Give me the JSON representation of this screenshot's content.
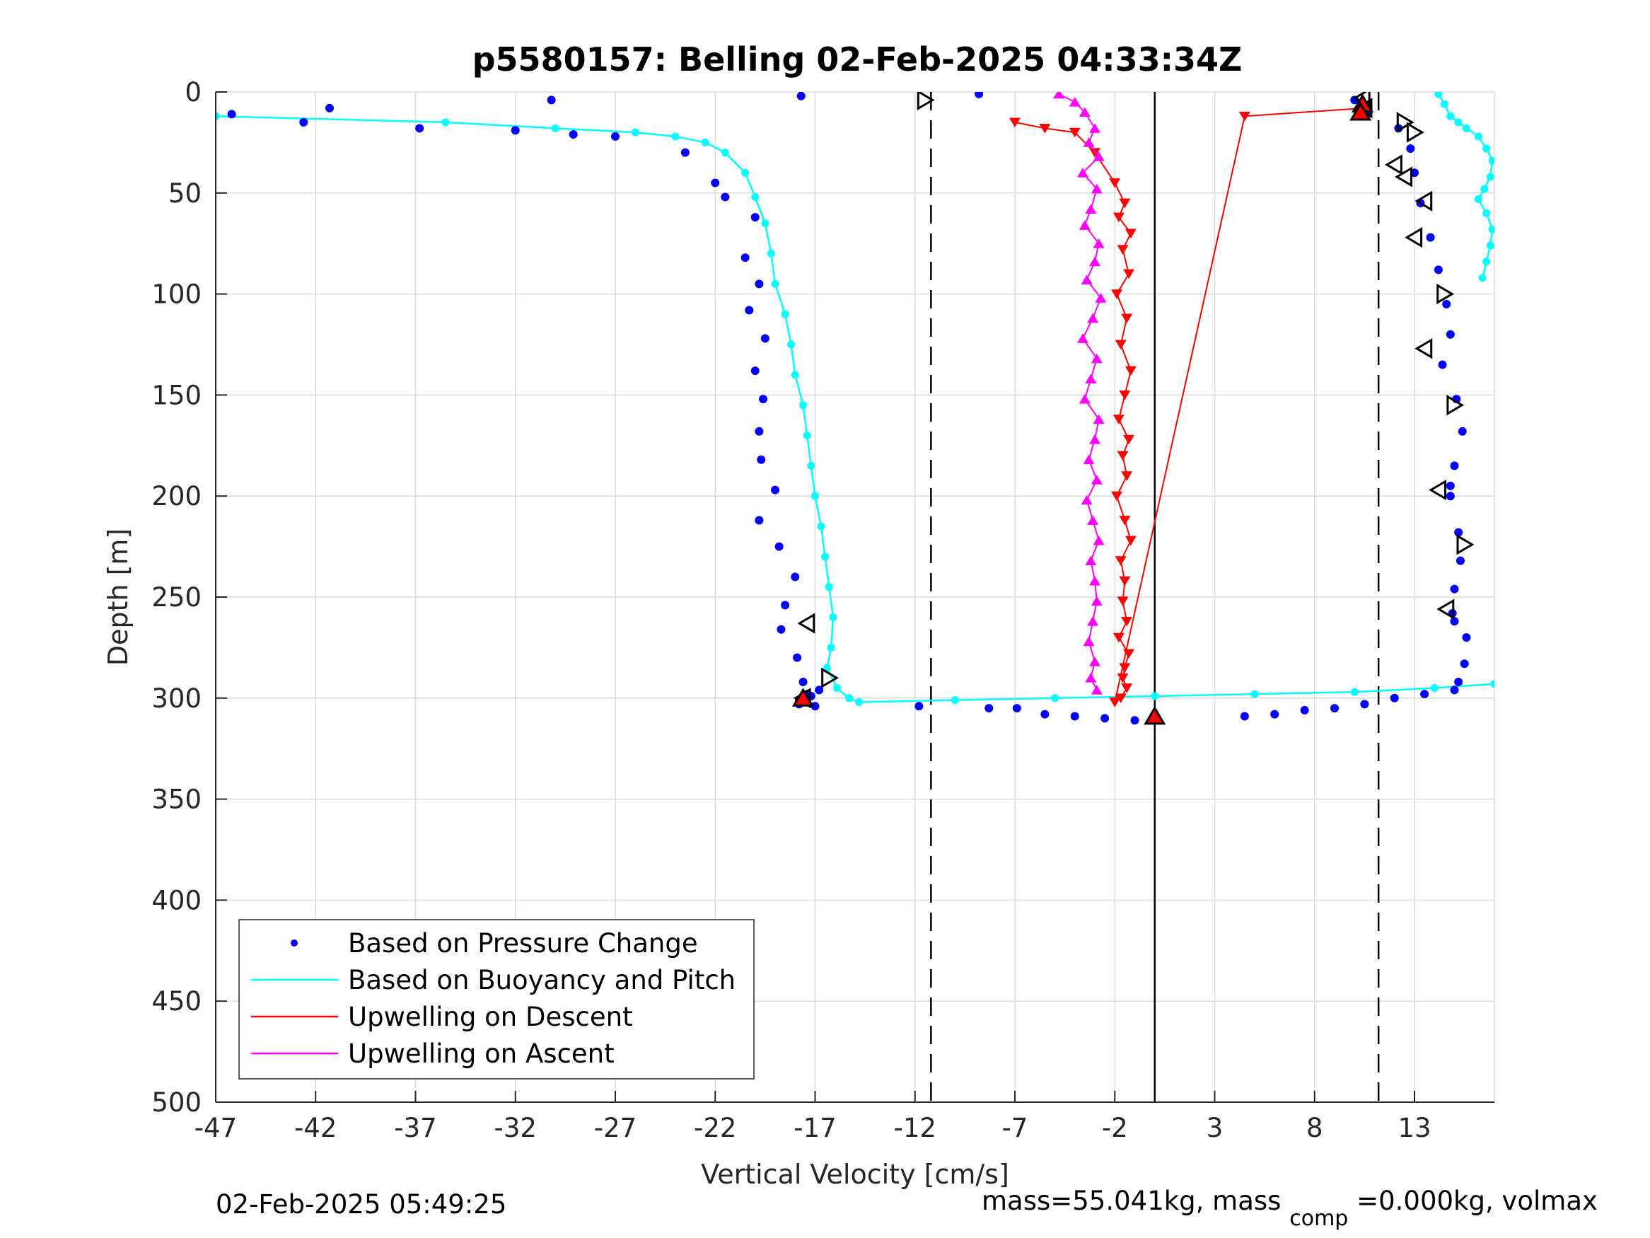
{
  "chart_data": {
    "type": "scatter",
    "title": "p5580157: Belling 02-Feb-2025 04:33:34Z",
    "xlabel": "Vertical Velocity [cm/s]",
    "ylabel": "Depth [m]",
    "xlim": [
      -47,
      17
    ],
    "ylim": [
      0,
      500
    ],
    "y_reversed": true,
    "grid": true,
    "xticks": [
      -47,
      -42,
      -37,
      -32,
      -27,
      -22,
      -17,
      -12,
      -7,
      -2,
      3,
      8,
      13
    ],
    "yticks": [
      0,
      50,
      100,
      150,
      200,
      250,
      300,
      350,
      400,
      450,
      500
    ],
    "legend_position": "bottom-left",
    "footer_left": "02-Feb-2025 05:49:25",
    "footer_right_parts": [
      "mass=55.041kg, mass",
      "comp",
      "=0.000kg, volmax"
    ],
    "reference_lines": [
      {
        "x": -11.2,
        "style": "dashed"
      },
      {
        "x": 11.2,
        "style": "dashed"
      },
      {
        "x": 0,
        "style": "solid"
      }
    ],
    "series": [
      {
        "name": "Based on Pressure Change",
        "color": "#0000ff",
        "marker": "dot",
        "x": [
          -46.2,
          -42.6,
          -41.3,
          -36.8,
          -32.0,
          -30.2,
          -29.1,
          -27.0,
          -17.7,
          -8.8,
          -23.5,
          -22.0,
          -21.5,
          -20.0,
          -20.5,
          -19.8,
          -20.3,
          -19.5,
          -20.0,
          -19.6,
          -19.8,
          -19.7,
          -19.0,
          -19.8,
          -18.8,
          -18.0,
          -18.5,
          -18.7,
          -17.9,
          -17.6,
          -17.5,
          -17.0,
          -17.8,
          -17.2,
          -16.8,
          -17.4,
          -17.8,
          -11.8,
          -8.3,
          -6.9,
          -5.5,
          -4.0,
          -2.5,
          -1.0,
          4.5,
          6.0,
          7.5,
          9.0,
          10.5,
          12.0,
          13.5,
          15.0,
          10.0,
          10.6,
          12.2,
          12.8,
          13.0,
          13.3,
          13.8,
          14.2,
          14.6,
          14.8,
          14.4,
          15.1,
          15.4,
          15.0,
          14.8,
          15.2,
          15.3,
          15.0,
          14.9,
          15.6,
          15.5,
          15.2,
          15.0,
          14.8
        ],
        "y": [
          11,
          15,
          8,
          18,
          19,
          4,
          21,
          22,
          2,
          1,
          30,
          45,
          52,
          62,
          82,
          95,
          108,
          122,
          138,
          152,
          168,
          182,
          197,
          212,
          225,
          240,
          254,
          266,
          280,
          292,
          302,
          304,
          301,
          299,
          296,
          298,
          303,
          304,
          305,
          305,
          308,
          309,
          310,
          311,
          309,
          308,
          306,
          305,
          303,
          300,
          298,
          296,
          4,
          10,
          18,
          28,
          40,
          55,
          72,
          88,
          105,
          120,
          135,
          152,
          168,
          185,
          200,
          218,
          232,
          246,
          258,
          270,
          283,
          292,
          262,
          195
        ]
      },
      {
        "name": "Based on Buoyancy and Pitch",
        "color": "#00ffff",
        "marker": "line",
        "x": [
          -47.0,
          -35.5,
          -30.0,
          -26.0,
          -24.0,
          -22.5,
          -21.5,
          -20.5,
          -20.0,
          -19.5,
          -19.2,
          -19.0,
          -18.5,
          -18.2,
          -18.0,
          -17.6,
          -17.4,
          -17.2,
          -17.0,
          -16.7,
          -16.5,
          -16.3,
          -16.1,
          -16.2,
          -16.4,
          -15.9,
          -15.3,
          -14.8,
          -10.0,
          -5.0,
          0.0,
          5.0,
          10.0,
          14.0,
          17.0
        ],
        "y": [
          12,
          15,
          18,
          20,
          22,
          25,
          30,
          40,
          52,
          65,
          80,
          95,
          110,
          125,
          140,
          155,
          170,
          185,
          200,
          215,
          230,
          245,
          260,
          275,
          285,
          295,
          300,
          302,
          301,
          300,
          299,
          298,
          297,
          295,
          293
        ],
        "upper_x": [
          14.2,
          14.5,
          14.8,
          15.2,
          15.6,
          16.2,
          16.6,
          16.9,
          16.8,
          16.5,
          16.2,
          16.6,
          16.9,
          16.8,
          16.6,
          16.4
        ],
        "upper_y": [
          1,
          6,
          12,
          15,
          18,
          22,
          28,
          34,
          42,
          48,
          53,
          60,
          68,
          76,
          84,
          92
        ]
      },
      {
        "name": "Upwelling on Descent",
        "color": "#ff0000",
        "marker": "triangle-down",
        "x": [
          -7.0,
          -5.5,
          -4.0,
          -3.0,
          -2.0,
          -1.5,
          -1.8,
          -1.2,
          -1.6,
          -1.3,
          -1.9,
          -1.4,
          -1.7,
          -1.2,
          -1.5,
          -1.8,
          -1.3,
          -1.6,
          -1.4,
          -1.9,
          -1.5,
          -1.2,
          -1.7,
          -1.5,
          -1.6,
          -1.4,
          -1.8,
          -1.3,
          -1.5,
          -1.6,
          -1.4,
          -1.7,
          -2.0,
          4.5,
          10.5
        ],
        "y": [
          15,
          18,
          20,
          30,
          45,
          55,
          62,
          70,
          78,
          90,
          100,
          112,
          125,
          138,
          150,
          162,
          172,
          180,
          190,
          200,
          212,
          222,
          232,
          242,
          252,
          262,
          270,
          278,
          285,
          290,
          295,
          300,
          302,
          12,
          8
        ]
      },
      {
        "name": "Upwelling on Ascent",
        "color": "#ff00ff",
        "marker": "triangle-up",
        "x": [
          -4.8,
          -4.0,
          -3.5,
          -3.0,
          -3.3,
          -2.8,
          -3.6,
          -2.9,
          -3.2,
          -3.5,
          -2.8,
          -3.0,
          -3.4,
          -2.7,
          -3.1,
          -3.6,
          -2.9,
          -3.2,
          -3.5,
          -2.8,
          -3.0,
          -3.3,
          -2.9,
          -3.4,
          -3.1,
          -2.8,
          -3.2,
          -3.0,
          -2.9,
          -3.1,
          -3.3,
          -3.0,
          -3.2,
          -2.9
        ],
        "y": [
          1,
          5,
          10,
          18,
          25,
          32,
          40,
          48,
          58,
          66,
          75,
          84,
          93,
          102,
          112,
          122,
          132,
          142,
          152,
          162,
          172,
          182,
          192,
          202,
          212,
          222,
          232,
          242,
          252,
          262,
          272,
          282,
          290,
          296
        ]
      }
    ],
    "black_markers": [
      {
        "x": -11.5,
        "y": 4,
        "shape": "right"
      },
      {
        "x": 10.4,
        "y": 3,
        "shape": "left"
      },
      {
        "x": 10.5,
        "y": 8,
        "shape": "left"
      },
      {
        "x": 12.5,
        "y": 15,
        "shape": "right"
      },
      {
        "x": 13.0,
        "y": 20,
        "shape": "right"
      },
      {
        "x": 12.0,
        "y": 36,
        "shape": "left"
      },
      {
        "x": 12.5,
        "y": 42,
        "shape": "left"
      },
      {
        "x": 13.5,
        "y": 54,
        "shape": "left"
      },
      {
        "x": 13.0,
        "y": 72,
        "shape": "left"
      },
      {
        "x": 14.5,
        "y": 100,
        "shape": "right"
      },
      {
        "x": 13.5,
        "y": 127,
        "shape": "left"
      },
      {
        "x": 15.0,
        "y": 155,
        "shape": "right"
      },
      {
        "x": 14.2,
        "y": 197,
        "shape": "left"
      },
      {
        "x": 15.5,
        "y": 224,
        "shape": "right"
      },
      {
        "x": 14.6,
        "y": 256,
        "shape": "left"
      },
      {
        "x": -17.4,
        "y": 263,
        "shape": "left"
      },
      {
        "x": -16.3,
        "y": 290,
        "shape": "right"
      },
      {
        "x": -17.6,
        "y": 300,
        "shape": "left"
      }
    ],
    "red_markers": [
      {
        "x": -17.6,
        "y": 300
      },
      {
        "x": 0.0,
        "y": 309
      },
      {
        "x": 10.4,
        "y": 6
      },
      {
        "x": 10.3,
        "y": 10
      }
    ]
  }
}
